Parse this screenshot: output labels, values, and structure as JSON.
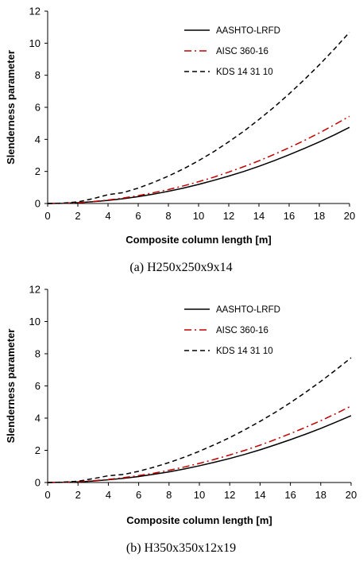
{
  "chart_data": [
    {
      "type": "line",
      "caption": "(a) H250x250x9x14",
      "xlabel": "Composite column length [m]",
      "ylabel": "Slenderness parameter",
      "xlim": [
        0,
        20
      ],
      "ylim": [
        0,
        12
      ],
      "xticks": [
        "0",
        "2",
        "4",
        "6",
        "8",
        "10",
        "12",
        "14",
        "16",
        "18",
        "20"
      ],
      "yticks": [
        "0",
        "2",
        "4",
        "6",
        "8",
        "10",
        "12"
      ],
      "grid": false,
      "legend_position": "top-right",
      "x": [
        0,
        1,
        2,
        3,
        4,
        5,
        6,
        7,
        8,
        9,
        10,
        11,
        12,
        13,
        14,
        15,
        16,
        17,
        18,
        19,
        20
      ],
      "series": [
        {
          "name": "AASHTO-LRFD",
          "color": "#000000",
          "dash": "solid",
          "values": [
            0,
            0.01,
            0.05,
            0.11,
            0.19,
            0.3,
            0.43,
            0.58,
            0.76,
            0.96,
            1.19,
            1.44,
            1.71,
            2.0,
            2.32,
            2.67,
            3.04,
            3.43,
            3.84,
            4.28,
            4.75
          ]
        },
        {
          "name": "AISC 360-16",
          "color": "#c00000",
          "dash": "dashdot",
          "values": [
            0,
            0.01,
            0.05,
            0.12,
            0.22,
            0.34,
            0.49,
            0.67,
            0.87,
            1.1,
            1.36,
            1.64,
            1.96,
            2.3,
            2.66,
            3.06,
            3.48,
            3.93,
            4.4,
            4.91,
            5.44
          ]
        },
        {
          "name": "KDS 14 31 10",
          "color": "#000000",
          "dash": "dashed",
          "values": [
            0,
            0.02,
            0.1,
            0.3,
            0.55,
            0.68,
            0.96,
            1.31,
            1.71,
            2.16,
            2.67,
            3.23,
            3.85,
            4.51,
            5.24,
            6.01,
            6.84,
            7.72,
            8.65,
            9.64,
            10.68
          ]
        }
      ]
    },
    {
      "type": "line",
      "caption": "(b) H350x350x12x19",
      "xlabel": "Composite column length [m]",
      "ylabel": "Slenderness parameter",
      "xlim": [
        0,
        20
      ],
      "ylim": [
        0,
        12
      ],
      "xticks": [
        "0",
        "2",
        "4",
        "6",
        "8",
        "10",
        "12",
        "14",
        "16",
        "18",
        "20"
      ],
      "yticks": [
        "0",
        "2",
        "4",
        "6",
        "8",
        "10",
        "12"
      ],
      "grid": false,
      "legend_position": "top-right",
      "x": [
        0,
        1,
        2,
        3,
        4,
        5,
        6,
        7,
        8,
        9,
        10,
        11,
        12,
        13,
        14,
        15,
        16,
        17,
        18,
        19,
        20
      ],
      "series": [
        {
          "name": "AASHTO-LRFD",
          "color": "#000000",
          "dash": "solid",
          "values": [
            0,
            0.01,
            0.04,
            0.09,
            0.17,
            0.26,
            0.37,
            0.51,
            0.66,
            0.84,
            1.04,
            1.26,
            1.49,
            1.75,
            2.03,
            2.34,
            2.66,
            3.0,
            3.36,
            3.75,
            4.15
          ]
        },
        {
          "name": "AISC 360-16",
          "color": "#c00000",
          "dash": "dashdot",
          "values": [
            0,
            0.01,
            0.05,
            0.11,
            0.19,
            0.3,
            0.43,
            0.58,
            0.76,
            0.96,
            1.19,
            1.44,
            1.71,
            2.0,
            2.32,
            2.67,
            3.04,
            3.43,
            3.84,
            4.28,
            4.75
          ]
        },
        {
          "name": "KDS 14 31 10",
          "color": "#000000",
          "dash": "dashed",
          "values": [
            0,
            0.02,
            0.08,
            0.24,
            0.42,
            0.5,
            0.7,
            0.95,
            1.24,
            1.57,
            1.94,
            2.35,
            2.79,
            3.28,
            3.8,
            4.36,
            4.96,
            5.6,
            6.28,
            7.0,
            7.75
          ]
        }
      ]
    }
  ]
}
